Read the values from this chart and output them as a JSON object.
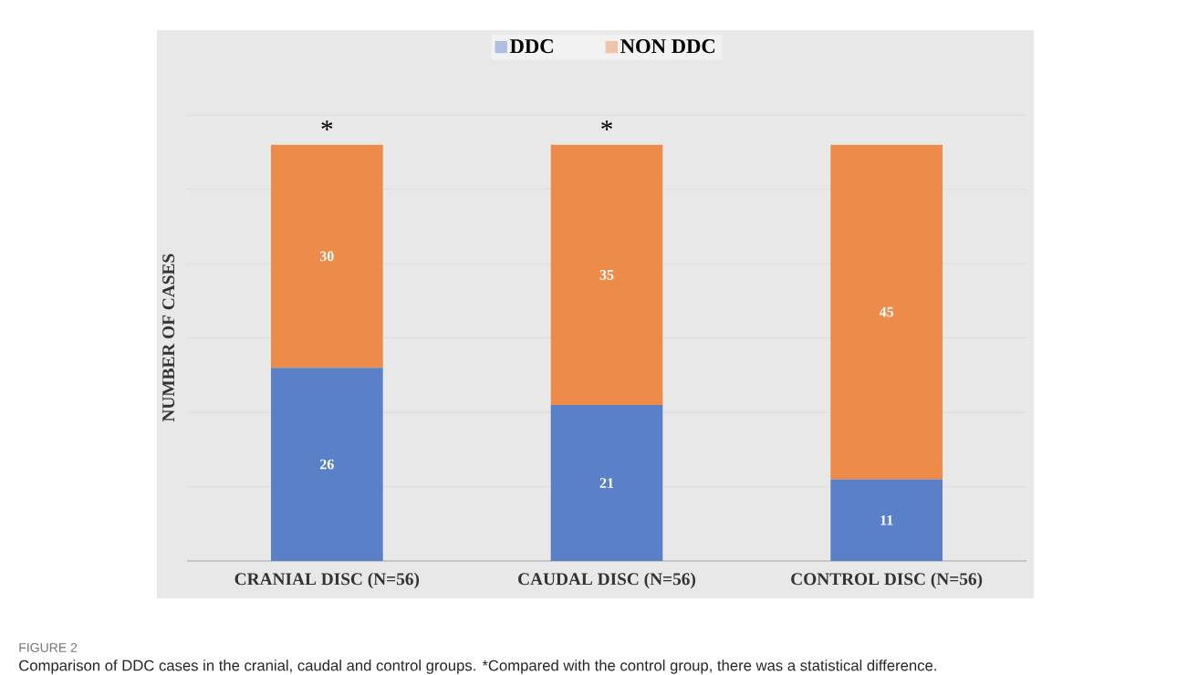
{
  "chart_data": {
    "type": "bar",
    "stacked": true,
    "categories": [
      "CRANIAL DISC (N=56)",
      "CAUDAL DISC (N=56)",
      "CONTROL DISC (N=56)"
    ],
    "series": [
      {
        "name": "DDC",
        "color": "#5a80c8",
        "values": [
          26,
          21,
          11
        ]
      },
      {
        "name": "NON DDC",
        "color": "#ed8c4a",
        "values": [
          30,
          35,
          45
        ]
      }
    ],
    "ylabel": "NUMBER OF CASES",
    "grid": "y",
    "legend": "top",
    "data_labels": true,
    "tick_labels": "x",
    "annotations": [
      {
        "text": "*",
        "x": "CRANIAL DISC (N=56)",
        "y": 56
      },
      {
        "text": "*",
        "x": "CAUDAL DISC (N=56)",
        "y": 56
      },
      "FIGURE 2",
      "Comparison of DDC cases in the cranial, caudal and control groups. *Compared with the control group, there was a statistical difference."
    ]
  }
}
